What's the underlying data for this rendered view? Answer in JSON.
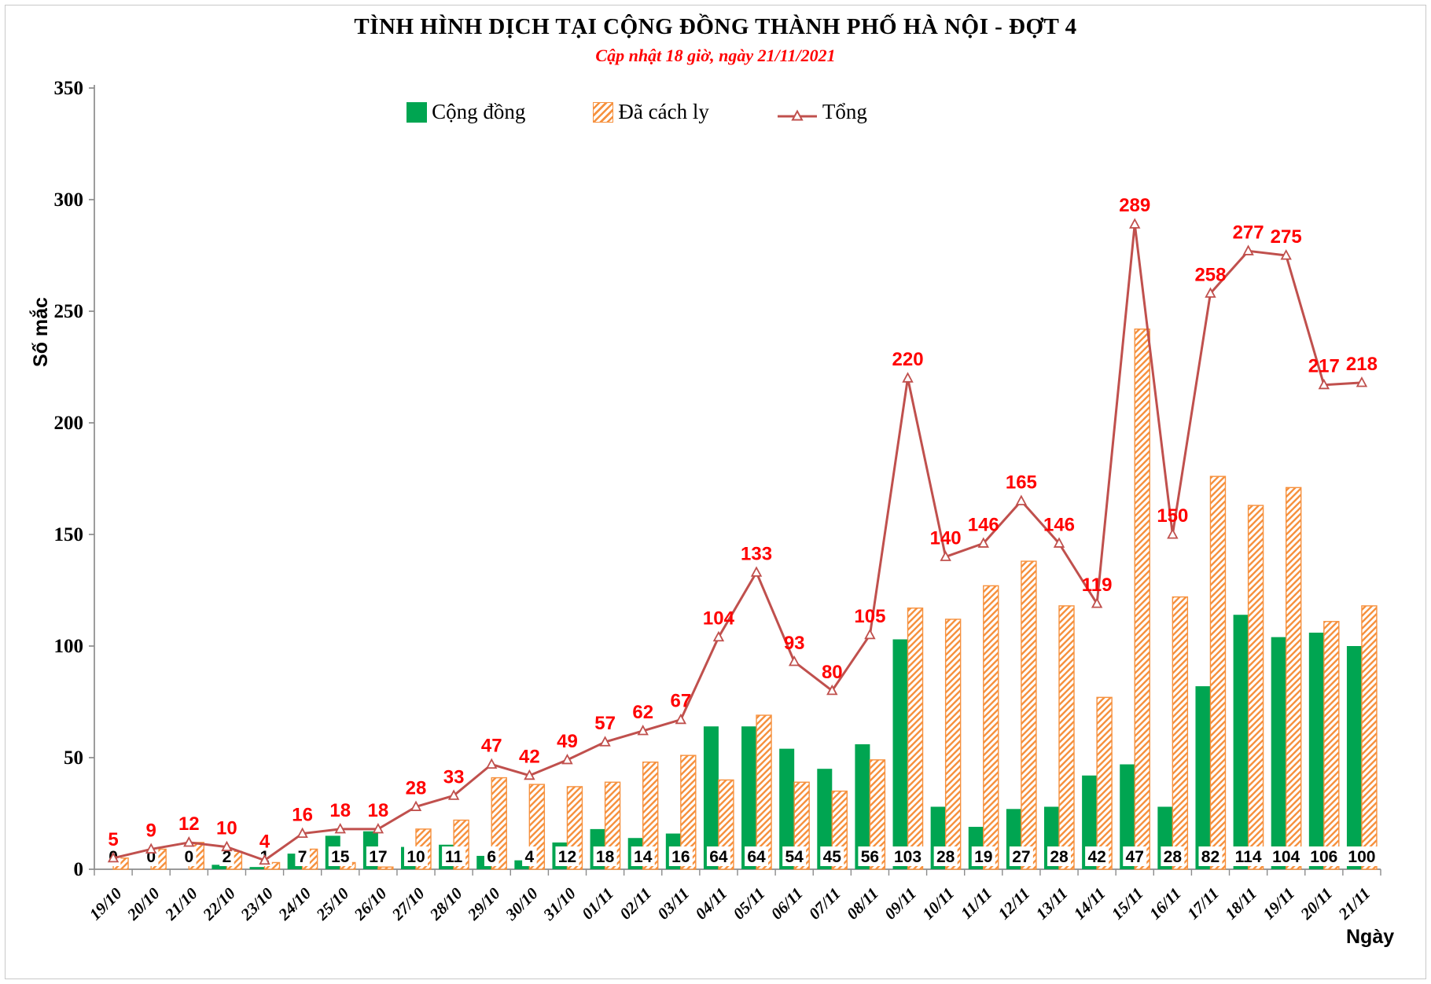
{
  "header": {
    "title": "TÌNH HÌNH DỊCH TẠI CỘNG ĐỒNG THÀNH PHỐ HÀ NỘI - ĐỢT 4",
    "subtitle": "Cập nhật 18 giờ, ngày 21/11/2021"
  },
  "legend": {
    "items": [
      {
        "id": "cong-dong",
        "label": "Cộng đồng",
        "swatch": "green-solid-square"
      },
      {
        "id": "da-cach-ly",
        "label": "Đã cách ly",
        "swatch": "orange-hatched-square"
      },
      {
        "id": "tong",
        "label": "Tổng",
        "swatch": "red-line-triangle-marker"
      }
    ]
  },
  "colors": {
    "community_bar": "#00a551",
    "quarantine_hatch": "#f6913e",
    "total_line": "#c0504d",
    "red_data_label": "#ff0000",
    "black_data_label": "#000000",
    "axis": "#8c8c8c"
  },
  "chart_data": {
    "type": "bar",
    "subtype": "grouped-bars-with-line-overlay",
    "title": "TÌNH HÌNH DỊCH TẠI CỘNG ĐỒNG THÀNH PHỐ HÀ NỘI - ĐỢT 4",
    "subtitle": "Cập nhật 18 giờ, ngày 21/11/2021",
    "xlabel": "Ngày",
    "ylabel": "Số mắc",
    "ylim": [
      0,
      350
    ],
    "y_ticks": [
      0,
      50,
      100,
      150,
      200,
      250,
      300,
      350
    ],
    "grid": false,
    "legend_position": "top",
    "categories": [
      "19/10",
      "20/10",
      "21/10",
      "22/10",
      "23/10",
      "24/10",
      "25/10",
      "26/10",
      "27/10",
      "28/10",
      "29/10",
      "30/10",
      "31/10",
      "01/11",
      "02/11",
      "03/11",
      "04/11",
      "05/11",
      "06/11",
      "07/11",
      "08/11",
      "09/11",
      "10/11",
      "11/11",
      "12/11",
      "13/11",
      "14/11",
      "15/11",
      "16/11",
      "17/11",
      "18/11",
      "19/11",
      "20/11",
      "21/11"
    ],
    "series": [
      {
        "name": "Cộng đồng",
        "type": "bar",
        "style": "solid-green",
        "labels_shown": "black, at bar base",
        "values": [
          0,
          0,
          0,
          2,
          1,
          7,
          15,
          17,
          10,
          11,
          6,
          4,
          12,
          18,
          14,
          16,
          64,
          64,
          54,
          45,
          56,
          103,
          28,
          19,
          27,
          28,
          42,
          47,
          28,
          82,
          114,
          104,
          106,
          100
        ]
      },
      {
        "name": "Đã cách ly",
        "type": "bar",
        "style": "orange-diagonal-hatch",
        "labels_shown": "none (heights = Tổng − Cộng đồng)",
        "values": [
          5,
          9,
          12,
          8,
          3,
          9,
          3,
          1,
          18,
          22,
          41,
          38,
          37,
          39,
          48,
          51,
          40,
          69,
          39,
          35,
          49,
          117,
          112,
          127,
          138,
          118,
          77,
          242,
          122,
          176,
          163,
          171,
          111,
          118
        ]
      },
      {
        "name": "Tổng",
        "type": "line",
        "marker": "open-triangle",
        "labels_shown": "red, above markers",
        "values": [
          5,
          9,
          12,
          10,
          4,
          16,
          18,
          18,
          28,
          33,
          47,
          42,
          49,
          57,
          62,
          67,
          104,
          133,
          93,
          80,
          105,
          220,
          140,
          146,
          165,
          146,
          119,
          289,
          150,
          258,
          277,
          275,
          217,
          218
        ]
      }
    ]
  }
}
